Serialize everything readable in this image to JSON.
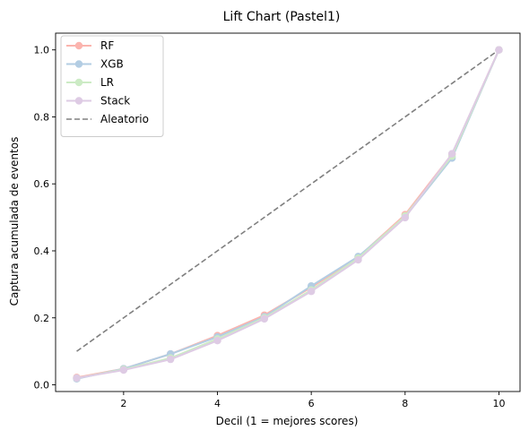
{
  "chart_data": {
    "type": "line",
    "title": "Lift Chart (Pastel1)",
    "xlabel": "Decil (1 = mejores scores)",
    "ylabel": "Captura acumulada de eventos",
    "xlim": [
      0.55,
      10.45
    ],
    "ylim": [
      -0.02,
      1.05
    ],
    "xticks": [
      2,
      4,
      6,
      8,
      10
    ],
    "yticks": [
      0.0,
      0.2,
      0.4,
      0.6,
      0.8,
      1.0
    ],
    "grid": false,
    "legend_position": "top-left",
    "x": [
      1,
      2,
      3,
      4,
      5,
      6,
      7,
      8,
      9,
      10
    ],
    "series": [
      {
        "name": "RF",
        "color": "#fbb4ae",
        "marker": "circle",
        "values": [
          0.022,
          0.048,
          0.092,
          0.147,
          0.208,
          0.291,
          0.381,
          0.508,
          0.689,
          1.0
        ]
      },
      {
        "name": "XGB",
        "color": "#b3cde3",
        "marker": "circle",
        "values": [
          0.018,
          0.048,
          0.092,
          0.143,
          0.203,
          0.295,
          0.383,
          0.501,
          0.677,
          1.0
        ]
      },
      {
        "name": "LR",
        "color": "#ccebc5",
        "marker": "circle",
        "values": [
          0.02,
          0.046,
          0.08,
          0.137,
          0.2,
          0.283,
          0.378,
          0.504,
          0.683,
          1.0
        ]
      },
      {
        "name": "Stack",
        "color": "#decbe4",
        "marker": "circle",
        "values": [
          0.02,
          0.044,
          0.076,
          0.132,
          0.197,
          0.279,
          0.373,
          0.499,
          0.69,
          1.0
        ]
      }
    ],
    "reference": {
      "name": "Aleatorio",
      "color": "#808080",
      "style": "dashed",
      "x": [
        1,
        10
      ],
      "values": [
        0.1,
        1.0
      ]
    }
  }
}
